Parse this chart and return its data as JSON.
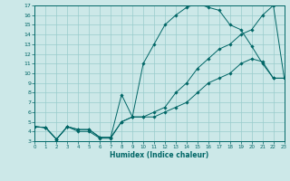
{
  "bg_color": "#cce8e8",
  "line_color": "#006666",
  "grid_color": "#99cccc",
  "xlim": [
    0,
    23
  ],
  "ylim": [
    3,
    17
  ],
  "xticks": [
    0,
    1,
    2,
    3,
    4,
    5,
    6,
    7,
    8,
    9,
    10,
    11,
    12,
    13,
    14,
    15,
    16,
    17,
    18,
    19,
    20,
    21,
    22,
    23
  ],
  "yticks": [
    3,
    4,
    5,
    6,
    7,
    8,
    9,
    10,
    11,
    12,
    13,
    14,
    15,
    16,
    17
  ],
  "xlabel": "Humidex (Indice chaleur)",
  "line1_x": [
    0,
    1,
    2,
    3,
    4,
    5,
    6,
    7,
    8,
    9,
    10,
    11,
    12,
    13,
    14,
    15,
    16,
    17,
    18,
    19,
    20,
    21,
    22,
    23
  ],
  "line1_y": [
    4.5,
    4.4,
    3.2,
    4.5,
    4.2,
    4.2,
    3.4,
    3.4,
    5.0,
    5.5,
    5.5,
    5.5,
    6.0,
    6.5,
    7.0,
    8.0,
    9.0,
    9.5,
    10.0,
    11.0,
    11.5,
    11.2,
    9.5,
    9.5
  ],
  "line2_x": [
    0,
    1,
    2,
    3,
    4,
    5,
    6,
    7,
    8,
    9,
    10,
    11,
    12,
    13,
    14,
    15,
    16,
    17,
    18,
    19,
    20,
    21,
    22,
    23
  ],
  "line2_y": [
    4.5,
    4.4,
    3.2,
    4.5,
    4.2,
    4.2,
    3.4,
    3.4,
    7.8,
    5.5,
    5.5,
    6.0,
    6.5,
    8.0,
    9.0,
    10.5,
    11.5,
    12.5,
    13.0,
    14.0,
    14.5,
    16.0,
    17.0,
    9.5
  ],
  "line3_x": [
    0,
    1,
    2,
    3,
    4,
    5,
    6,
    7,
    8,
    9,
    10,
    11,
    12,
    13,
    14,
    15,
    16,
    17,
    18,
    19,
    20,
    21,
    22,
    23
  ],
  "line3_y": [
    4.5,
    4.4,
    3.2,
    4.5,
    4.0,
    4.0,
    3.3,
    3.3,
    5.0,
    5.5,
    11.0,
    13.0,
    15.0,
    16.0,
    16.8,
    17.2,
    16.8,
    16.5,
    15.0,
    14.5,
    12.8,
    11.0,
    9.5,
    9.5
  ]
}
